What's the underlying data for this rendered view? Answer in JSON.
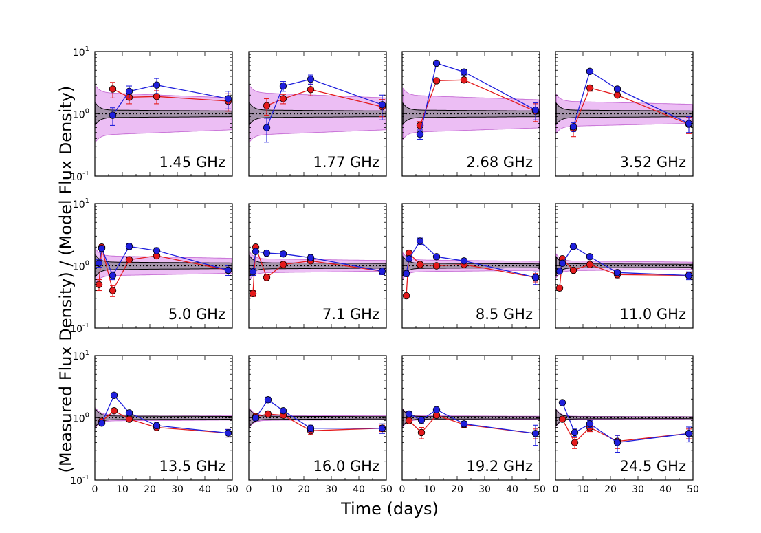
{
  "chart_data": {
    "type": "scatter",
    "xlabel": "Time (days)",
    "ylabel": "(Measured Flux Density) / (Model Flux Density)",
    "yscale": "log",
    "ylim": [
      0.1,
      10
    ],
    "xlim": [
      0,
      50
    ],
    "xticks": [
      0,
      10,
      20,
      30,
      40,
      50
    ],
    "xtick_labels": [
      "0",
      "10",
      "20",
      "30",
      "40",
      "50"
    ],
    "ytick_labels": [
      {
        "base": "10",
        "exp": "1"
      },
      {
        "base": "10",
        "exp": "0"
      },
      {
        "base": "10",
        "exp": "-1"
      }
    ],
    "colors": {
      "series_red": "#e41a1c",
      "series_blue": "#1f1fdc",
      "band_outer": "#e6a8f0",
      "band_inner": "#9a8d9e",
      "marker_edge": "#000000"
    },
    "panels": [
      {
        "label": "1.45 GHz",
        "band_outer": 2.2,
        "band_inner": 1.15,
        "red": [
          [
            6.5,
            2.5,
            0.7
          ],
          [
            12.5,
            1.85,
            0.4
          ],
          [
            22.5,
            1.9,
            0.45
          ],
          [
            48.5,
            1.6,
            0.5
          ]
        ],
        "blue": [
          [
            6.5,
            0.95,
            0.3
          ],
          [
            12.5,
            2.3,
            0.5
          ],
          [
            22.5,
            2.9,
            0.8
          ],
          [
            48.5,
            1.75,
            0.55
          ]
        ]
      },
      {
        "label": "1.77 GHz",
        "band_outer": 2.2,
        "band_inner": 1.15,
        "red": [
          [
            6.5,
            1.35,
            0.4
          ],
          [
            12.5,
            1.75,
            0.3
          ],
          [
            22.5,
            2.45,
            0.5
          ],
          [
            48.5,
            1.3,
            0.4
          ]
        ],
        "blue": [
          [
            6.5,
            0.6,
            0.25
          ],
          [
            12.5,
            2.8,
            0.5
          ],
          [
            22.5,
            3.6,
            0.6
          ],
          [
            48.5,
            1.4,
            0.6
          ]
        ]
      },
      {
        "label": "2.68 GHz",
        "band_outer": 2.0,
        "band_inner": 1.15,
        "red": [
          [
            6.5,
            0.65,
            0.1
          ],
          [
            12.5,
            3.4,
            0.3
          ],
          [
            22.5,
            3.5,
            0.3
          ],
          [
            48.5,
            1.1,
            0.35
          ]
        ],
        "blue": [
          [
            6.5,
            0.47,
            0.08
          ],
          [
            12.5,
            6.5,
            0.6
          ],
          [
            22.5,
            4.7,
            0.5
          ],
          [
            48.5,
            1.15,
            0.35
          ]
        ]
      },
      {
        "label": "3.52 GHz",
        "band_outer": 1.6,
        "band_inner": 1.15,
        "red": [
          [
            6.5,
            0.58,
            0.15
          ],
          [
            12.5,
            2.6,
            0.3
          ],
          [
            22.5,
            2.0,
            0.2
          ],
          [
            48.5,
            0.68,
            0.2
          ]
        ],
        "blue": [
          [
            6.5,
            0.62,
            0.1
          ],
          [
            12.5,
            4.8,
            0.4
          ],
          [
            22.5,
            2.5,
            0.25
          ],
          [
            48.5,
            0.7,
            0.2
          ]
        ]
      },
      {
        "label": "5.0 GHz",
        "band_outer": 1.45,
        "band_inner": 1.15,
        "red": [
          [
            1.5,
            0.5,
            0.1
          ],
          [
            2.5,
            2.0,
            0.2
          ],
          [
            6.5,
            0.4,
            0.08
          ],
          [
            12.5,
            1.25,
            0.12
          ],
          [
            22.5,
            1.45,
            0.15
          ],
          [
            48.5,
            0.85,
            0.15
          ]
        ],
        "blue": [
          [
            1.5,
            1.1,
            0.15
          ],
          [
            2.5,
            1.9,
            0.2
          ],
          [
            6.5,
            0.7,
            0.1
          ],
          [
            12.5,
            2.05,
            0.2
          ],
          [
            22.5,
            1.75,
            0.2
          ],
          [
            48.5,
            0.85,
            0.15
          ]
        ]
      },
      {
        "label": "7.1 GHz",
        "band_outer": 1.3,
        "band_inner": 1.12,
        "red": [
          [
            1.5,
            0.36,
            0.04
          ],
          [
            2.5,
            2.0,
            0.15
          ],
          [
            6.5,
            0.65,
            0.07
          ],
          [
            12.5,
            1.05,
            0.1
          ],
          [
            22.5,
            1.2,
            0.1
          ],
          [
            48.5,
            0.82,
            0.1
          ]
        ],
        "blue": [
          [
            1.5,
            0.8,
            0.1
          ],
          [
            2.5,
            1.7,
            0.15
          ],
          [
            6.5,
            1.6,
            0.15
          ],
          [
            12.5,
            1.55,
            0.15
          ],
          [
            22.5,
            1.35,
            0.15
          ],
          [
            48.5,
            0.82,
            0.1
          ]
        ]
      },
      {
        "label": "8.5 GHz",
        "band_outer": 1.25,
        "band_inner": 1.1,
        "red": [
          [
            1.5,
            0.33,
            0.03
          ],
          [
            2.5,
            1.6,
            0.12
          ],
          [
            6.5,
            1.05,
            0.1
          ],
          [
            12.5,
            1.0,
            0.08
          ],
          [
            22.5,
            1.05,
            0.08
          ],
          [
            48.5,
            0.65,
            0.1
          ]
        ],
        "blue": [
          [
            1.5,
            0.75,
            0.08
          ],
          [
            2.5,
            1.3,
            0.12
          ],
          [
            6.5,
            2.5,
            0.3
          ],
          [
            12.5,
            1.4,
            0.12
          ],
          [
            22.5,
            1.2,
            0.1
          ],
          [
            48.5,
            0.65,
            0.15
          ]
        ]
      },
      {
        "label": "11.0 GHz",
        "band_outer": 1.2,
        "band_inner": 1.08,
        "red": [
          [
            1.5,
            0.44,
            0.04
          ],
          [
            2.5,
            1.3,
            0.1
          ],
          [
            6.5,
            0.85,
            0.08
          ],
          [
            12.5,
            1.05,
            0.08
          ],
          [
            22.5,
            0.72,
            0.08
          ],
          [
            48.5,
            0.7,
            0.08
          ]
        ],
        "blue": [
          [
            1.5,
            0.82,
            0.08
          ],
          [
            2.5,
            1.1,
            0.1
          ],
          [
            6.5,
            2.05,
            0.25
          ],
          [
            12.5,
            1.4,
            0.12
          ],
          [
            22.5,
            0.78,
            0.08
          ],
          [
            48.5,
            0.7,
            0.1
          ]
        ]
      },
      {
        "label": "13.5 GHz",
        "band_outer": 1.12,
        "band_inner": 1.07,
        "red": [
          [
            2.5,
            0.88,
            0.08
          ],
          [
            7.0,
            1.3,
            0.1
          ],
          [
            12.5,
            0.95,
            0.08
          ],
          [
            22.5,
            0.7,
            0.08
          ],
          [
            48.5,
            0.57,
            0.08
          ]
        ],
        "blue": [
          [
            2.5,
            0.82,
            0.08
          ],
          [
            7.0,
            2.3,
            0.2
          ],
          [
            12.5,
            1.2,
            0.1
          ],
          [
            22.5,
            0.75,
            0.08
          ],
          [
            48.5,
            0.57,
            0.08
          ]
        ]
      },
      {
        "label": "16.0 GHz",
        "band_outer": 1.1,
        "band_inner": 1.06,
        "red": [
          [
            2.5,
            1.05,
            0.1
          ],
          [
            7.0,
            1.15,
            0.1
          ],
          [
            12.5,
            1.1,
            0.1
          ],
          [
            22.5,
            0.62,
            0.08
          ],
          [
            48.5,
            0.68,
            0.08
          ]
        ],
        "blue": [
          [
            2.5,
            1.0,
            0.1
          ],
          [
            7.0,
            1.95,
            0.2
          ],
          [
            12.5,
            1.3,
            0.1
          ],
          [
            22.5,
            0.68,
            0.08
          ],
          [
            48.5,
            0.68,
            0.12
          ]
        ]
      },
      {
        "label": "19.2 GHz",
        "band_outer": 1.08,
        "band_inner": 1.05,
        "red": [
          [
            2.5,
            0.9,
            0.08
          ],
          [
            7.0,
            0.58,
            0.12
          ],
          [
            12.5,
            1.1,
            0.1
          ],
          [
            22.5,
            0.78,
            0.08
          ],
          [
            48.5,
            0.56,
            0.1
          ]
        ],
        "blue": [
          [
            2.5,
            1.15,
            0.1
          ],
          [
            7.0,
            0.92,
            0.1
          ],
          [
            12.5,
            1.35,
            0.12
          ],
          [
            22.5,
            0.8,
            0.08
          ],
          [
            48.5,
            0.56,
            0.2
          ]
        ]
      },
      {
        "label": "24.5 GHz",
        "band_outer": 1.06,
        "band_inner": 1.04,
        "red": [
          [
            2.5,
            0.95,
            0.08
          ],
          [
            7.0,
            0.4,
            0.08
          ],
          [
            12.5,
            0.7,
            0.1
          ],
          [
            22.5,
            0.42,
            0.1
          ],
          [
            48.5,
            0.56,
            0.1
          ]
        ],
        "blue": [
          [
            2.5,
            1.75,
            0.15
          ],
          [
            7.0,
            0.58,
            0.08
          ],
          [
            12.5,
            0.8,
            0.1
          ],
          [
            22.5,
            0.4,
            0.12
          ],
          [
            48.5,
            0.56,
            0.15
          ]
        ]
      }
    ]
  }
}
